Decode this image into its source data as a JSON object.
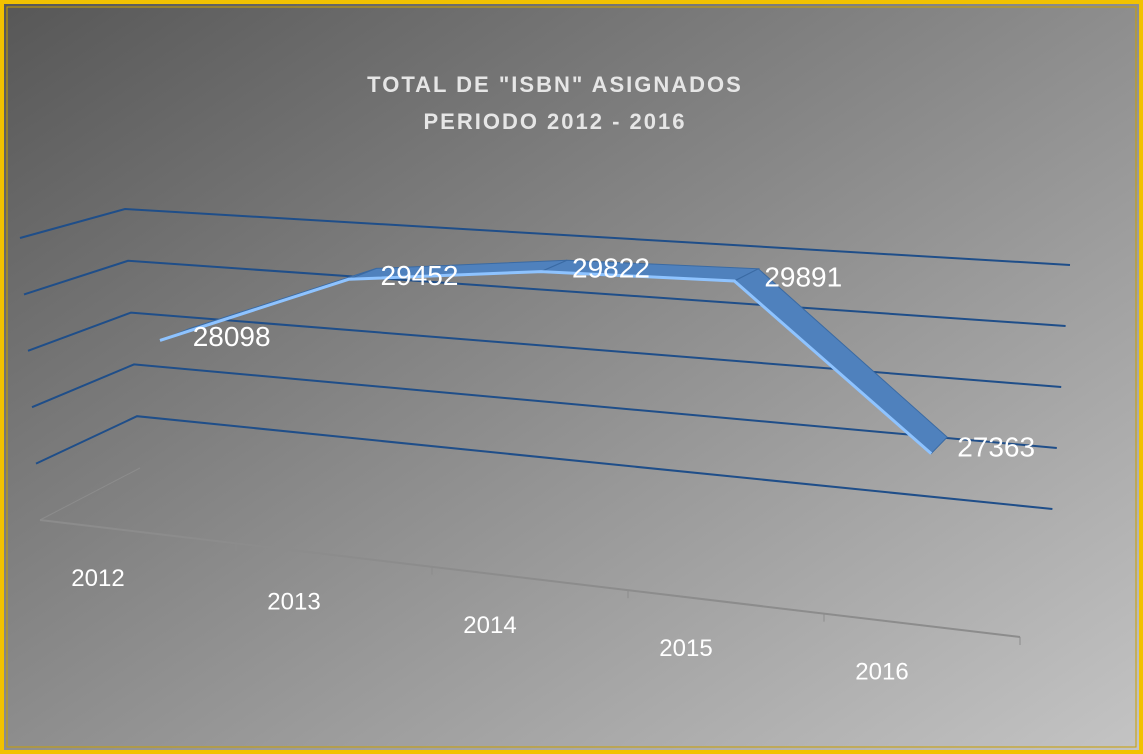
{
  "chart_data": {
    "type": "line3d",
    "title": "TOTAL DE \"ISBN\" ASIGNADOS",
    "subtitle": "PERIODO 2012 - 2016",
    "categories": [
      "2012",
      "2013",
      "2014",
      "2015",
      "2016"
    ],
    "values": [
      28098,
      29452,
      29822,
      29891,
      27363
    ],
    "color": "#4f81bd",
    "ylim": [
      25000,
      30000
    ],
    "yticks": [
      26000,
      27000,
      28000,
      29000,
      30000
    ],
    "grid": true
  }
}
